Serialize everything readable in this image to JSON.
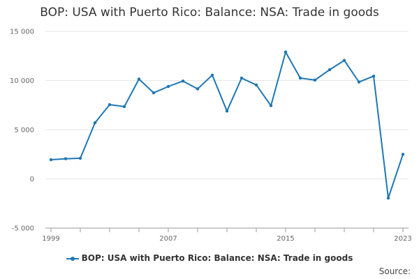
{
  "title": "BOP: USA with Puerto Rico: Balance: NSA: Trade in goods",
  "legend_label": "BOP: USA with Puerto Rico: Balance: NSA: Trade in goods",
  "source_label": "Source:",
  "colors": {
    "series": "#1f77b4",
    "grid": "#e6e6e6",
    "axis": "#999999"
  },
  "chart_data": {
    "type": "line",
    "title": "BOP: USA with Puerto Rico: Balance: NSA: Trade in goods",
    "xlabel": "",
    "ylabel": "",
    "x": [
      1999,
      2000,
      2001,
      2002,
      2003,
      2004,
      2005,
      2006,
      2007,
      2008,
      2009,
      2010,
      2011,
      2012,
      2013,
      2014,
      2015,
      2016,
      2017,
      2018,
      2019,
      2020,
      2021,
      2022,
      2023
    ],
    "series": [
      {
        "name": "BOP: USA with Puerto Rico: Balance: NSA: Trade in goods",
        "values": [
          1950,
          2050,
          2100,
          5700,
          7550,
          7350,
          10150,
          8750,
          9400,
          9950,
          9150,
          10550,
          6900,
          10250,
          9550,
          7450,
          12900,
          10250,
          10050,
          11100,
          12050,
          9850,
          10450,
          -1950,
          2500
        ]
      }
    ],
    "x_ticks": [
      1999,
      2007,
      2015,
      2023
    ],
    "x_tick_labels": [
      "1999",
      "2007",
      "2015",
      "2023"
    ],
    "y_ticks": [
      -5000,
      0,
      5000,
      10000,
      15000
    ],
    "y_tick_labels": [
      "-5 000",
      "0",
      "5 000",
      "10 000",
      "15 000"
    ],
    "xlim": [
      1999,
      2023
    ],
    "ylim": [
      -5000,
      15000
    ],
    "grid": "horizontal",
    "legend_position": "bottom-center"
  }
}
